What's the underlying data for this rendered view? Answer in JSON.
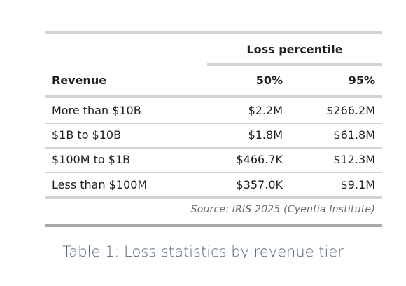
{
  "table": {
    "group_header": "Loss percentile",
    "columns": [
      "Revenue",
      "50%",
      "95%"
    ],
    "rows": [
      [
        "More than $10B",
        "$2.2M",
        "$266.2M"
      ],
      [
        "$1B to $10B",
        "$1.8M",
        "$61.8M"
      ],
      [
        "$100M to $1B",
        "$466.7K",
        "$12.3M"
      ],
      [
        "Less than $100M",
        "$357.0K",
        "$9.1M"
      ]
    ],
    "source": "Source: IRIS 2025 (Cyentia Institute)"
  },
  "caption": "Table 1: Loss statistics by revenue tier"
}
